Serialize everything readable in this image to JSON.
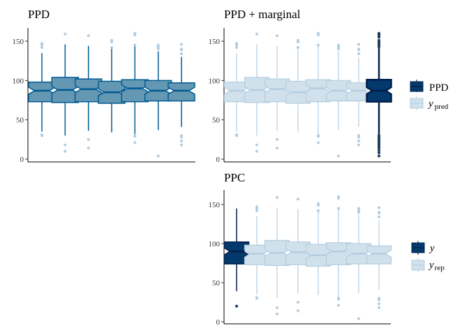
{
  "colors": {
    "dark": "#03396c",
    "dark_outline": "#011f4b",
    "mid_fill": "#6497b1",
    "mid_line": "#005b96",
    "light_fill": "#d1e1ec",
    "light_line": "#b3cde0"
  },
  "chart_data": [
    {
      "type": "boxplot",
      "title": "PPD",
      "ylim": [
        0,
        165
      ],
      "yticks": [
        "0",
        "50",
        "100",
        "150"
      ],
      "series": [
        {
          "name": "yrep",
          "boxes": [
            {
              "q1": 73,
              "median": 87,
              "q3": 98,
              "lower": 35,
              "upper": 135,
              "outliers": [
                30,
                31,
                142,
                145,
                147
              ]
            },
            {
              "q1": 72,
              "median": 88,
              "q3": 104,
              "lower": 30,
              "upper": 146,
              "outliers": [
                10,
                18,
                159
              ]
            },
            {
              "q1": 73,
              "median": 89,
              "q3": 102,
              "lower": 36,
              "upper": 144,
              "outliers": [
                14,
                25,
                157
              ]
            },
            {
              "q1": 71,
              "median": 85,
              "q3": 99,
              "lower": 34,
              "upper": 141,
              "outliers": [
                142,
                149,
                151
              ]
            },
            {
              "q1": 73,
              "median": 90,
              "q3": 101,
              "lower": 32,
              "upper": 144,
              "outliers": [
                21,
                29,
                30,
                145,
                158,
                160
              ]
            },
            {
              "q1": 74,
              "median": 87,
              "q3": 100,
              "lower": 37,
              "upper": 137,
              "outliers": [
                4,
                140,
                142,
                143,
                145
              ]
            },
            {
              "q1": 74,
              "median": 87,
              "q3": 97,
              "lower": 41,
              "upper": 130,
              "outliers": [
                18,
                23,
                28,
                29,
                30,
                134,
                139,
                140,
                146
              ]
            }
          ]
        }
      ]
    },
    {
      "type": "boxplot",
      "title": "PPD + marginal",
      "ylim": [
        0,
        165
      ],
      "yticks": [
        "0",
        "50",
        "100",
        "150"
      ],
      "legend": {
        "position": "right",
        "entries": [
          {
            "label": "PPD",
            "sub": ""
          },
          {
            "label": "y",
            "sub": "pred"
          }
        ]
      },
      "series": [
        {
          "name": "ypred",
          "boxes": [
            {
              "q1": 73,
              "median": 87,
              "q3": 98,
              "lower": 35,
              "upper": 135,
              "outliers": [
                30,
                31,
                142,
                145,
                147
              ]
            },
            {
              "q1": 72,
              "median": 88,
              "q3": 104,
              "lower": 30,
              "upper": 146,
              "outliers": [
                10,
                18,
                159
              ]
            },
            {
              "q1": 73,
              "median": 89,
              "q3": 102,
              "lower": 36,
              "upper": 144,
              "outliers": [
                14,
                25,
                157
              ]
            },
            {
              "q1": 71,
              "median": 85,
              "q3": 99,
              "lower": 34,
              "upper": 141,
              "outliers": [
                142,
                149,
                151
              ]
            },
            {
              "q1": 73,
              "median": 90,
              "q3": 101,
              "lower": 32,
              "upper": 144,
              "outliers": [
                21,
                29,
                30,
                145,
                158,
                160
              ]
            },
            {
              "q1": 74,
              "median": 87,
              "q3": 100,
              "lower": 37,
              "upper": 137,
              "outliers": [
                4,
                140,
                142,
                143,
                145
              ]
            },
            {
              "q1": 74,
              "median": 87,
              "q3": 97,
              "lower": 41,
              "upper": 130,
              "outliers": [
                18,
                23,
                28,
                29,
                30,
                134,
                139,
                140,
                146
              ]
            }
          ]
        },
        {
          "name": "PPD",
          "boxes": [
            {
              "q1": 73,
              "median": 87,
              "q3": 101,
              "lower": 30,
              "upper": 142,
              "outliers": [
                4,
                8,
                11,
                14,
                16,
                18,
                20,
                22,
                24,
                26,
                28,
                30,
                143,
                145,
                147,
                149,
                151,
                155,
                157,
                158,
                159,
                160
              ]
            }
          ]
        }
      ]
    },
    {
      "type": "boxplot",
      "title": "PPC",
      "ylim": [
        0,
        165
      ],
      "yticks": [
        "0",
        "50",
        "100",
        "150"
      ],
      "legend": {
        "position": "right",
        "entries": [
          {
            "label": "y",
            "sub": ""
          },
          {
            "label": "y",
            "sub": "rep"
          }
        ]
      },
      "series": [
        {
          "name": "y",
          "boxes": [
            {
              "q1": 74,
              "median": 90,
              "q3": 102,
              "lower": 39,
              "upper": 145,
              "outliers": [
                20
              ]
            }
          ]
        },
        {
          "name": "yrep",
          "boxes": [
            {
              "q1": 73,
              "median": 87,
              "q3": 98,
              "lower": 35,
              "upper": 135,
              "outliers": [
                30,
                31,
                142,
                145,
                147
              ]
            },
            {
              "q1": 72,
              "median": 88,
              "q3": 104,
              "lower": 30,
              "upper": 146,
              "outliers": [
                10,
                18,
                159
              ]
            },
            {
              "q1": 73,
              "median": 89,
              "q3": 102,
              "lower": 36,
              "upper": 144,
              "outliers": [
                14,
                25,
                157
              ]
            },
            {
              "q1": 71,
              "median": 85,
              "q3": 99,
              "lower": 34,
              "upper": 141,
              "outliers": [
                142,
                149,
                151
              ]
            },
            {
              "q1": 73,
              "median": 90,
              "q3": 101,
              "lower": 32,
              "upper": 144,
              "outliers": [
                21,
                29,
                30,
                145,
                158,
                160
              ]
            },
            {
              "q1": 74,
              "median": 87,
              "q3": 100,
              "lower": 37,
              "upper": 137,
              "outliers": [
                4,
                140,
                142,
                143,
                145
              ]
            },
            {
              "q1": 74,
              "median": 87,
              "q3": 97,
              "lower": 41,
              "upper": 130,
              "outliers": [
                18,
                23,
                28,
                29,
                30,
                134,
                139,
                140,
                146
              ]
            }
          ]
        }
      ]
    }
  ]
}
